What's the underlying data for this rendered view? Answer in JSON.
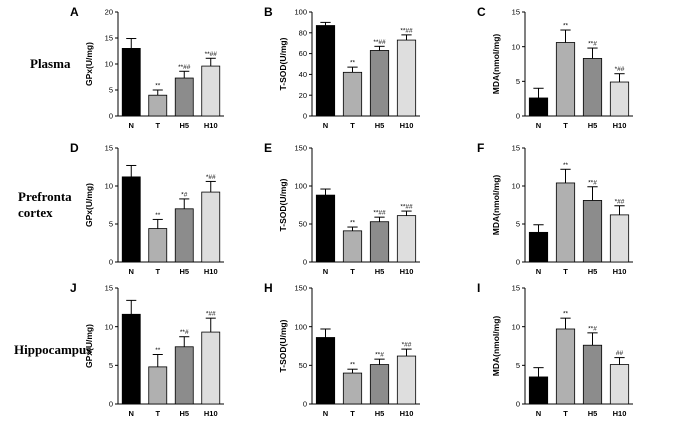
{
  "row_labels": [
    "Plasma",
    "Prefronta\ncortex",
    "Hippocampus"
  ],
  "bar_colors": [
    "#000000",
    "#b0b0b0",
    "#8c8c8c",
    "#dedede"
  ],
  "chart_data": [
    {
      "type": "bar",
      "panel": "A",
      "ylabel": "GPx(U/mg)",
      "ylim": [
        0,
        20
      ],
      "yticks": [
        0,
        5,
        10,
        15,
        20
      ],
      "categories": [
        "N",
        "T",
        "H5",
        "H10"
      ],
      "values": [
        13.0,
        4.0,
        7.3,
        9.6
      ],
      "errors": [
        1.9,
        1.0,
        1.3,
        1.5
      ],
      "annotations": [
        "",
        "**",
        "**##",
        "**##"
      ]
    },
    {
      "type": "bar",
      "panel": "B",
      "ylabel": "T-SOD(U/mg)",
      "ylim": [
        0,
        100
      ],
      "yticks": [
        0,
        20,
        40,
        60,
        80,
        100
      ],
      "categories": [
        "N",
        "T",
        "H5",
        "H10"
      ],
      "values": [
        87,
        42,
        63,
        73
      ],
      "errors": [
        3,
        5,
        4,
        5
      ],
      "annotations": [
        "",
        "**",
        "**##",
        "**##"
      ]
    },
    {
      "type": "bar",
      "panel": "C",
      "ylabel": "MDA(nmol/mg)",
      "ylim": [
        0,
        15
      ],
      "yticks": [
        0,
        5,
        10,
        15
      ],
      "categories": [
        "N",
        "T",
        "H5",
        "H10"
      ],
      "values": [
        2.6,
        10.6,
        8.3,
        4.9
      ],
      "errors": [
        1.4,
        1.8,
        1.5,
        1.2
      ],
      "annotations": [
        "",
        "**",
        "**#",
        "*##"
      ]
    },
    {
      "type": "bar",
      "panel": "D",
      "ylabel": "GPx(U/mg)",
      "ylim": [
        0,
        15
      ],
      "yticks": [
        0,
        5,
        10,
        15
      ],
      "categories": [
        "N",
        "T",
        "H5",
        "H10"
      ],
      "values": [
        11.2,
        4.4,
        7.0,
        9.2
      ],
      "errors": [
        1.5,
        1.2,
        1.3,
        1.4
      ],
      "annotations": [
        "",
        "**",
        "*#",
        "*##"
      ]
    },
    {
      "type": "bar",
      "panel": "E",
      "ylabel": "T-SOD(U/mg)",
      "ylim": [
        0,
        150
      ],
      "yticks": [
        0,
        50,
        100,
        150
      ],
      "categories": [
        "N",
        "T",
        "H5",
        "H10"
      ],
      "values": [
        88,
        41,
        53,
        61
      ],
      "errors": [
        8,
        5,
        6,
        6
      ],
      "annotations": [
        "",
        "**",
        "**##",
        "**##"
      ]
    },
    {
      "type": "bar",
      "panel": "F",
      "ylabel": "MDA(nmol/mg)",
      "ylim": [
        0,
        15
      ],
      "yticks": [
        0,
        5,
        10,
        15
      ],
      "categories": [
        "N",
        "T",
        "H5",
        "H10"
      ],
      "values": [
        3.9,
        10.4,
        8.1,
        6.2
      ],
      "errors": [
        1.0,
        1.8,
        1.8,
        1.2
      ],
      "annotations": [
        "",
        "**",
        "**#",
        "*##"
      ]
    },
    {
      "type": "bar",
      "panel": "J",
      "ylabel": "GPx(U/mg)",
      "ylim": [
        0,
        15
      ],
      "yticks": [
        0,
        5,
        10,
        15
      ],
      "categories": [
        "N",
        "T",
        "H5",
        "H10"
      ],
      "values": [
        11.6,
        4.8,
        7.4,
        9.3
      ],
      "errors": [
        1.8,
        1.6,
        1.3,
        1.8
      ],
      "annotations": [
        "",
        "**",
        "**#",
        "*##"
      ]
    },
    {
      "type": "bar",
      "panel": "H",
      "ylabel": "T-SOD(U/mg)",
      "ylim": [
        0,
        150
      ],
      "yticks": [
        0,
        50,
        100,
        150
      ],
      "categories": [
        "N",
        "T",
        "H5",
        "H10"
      ],
      "values": [
        86,
        40,
        51,
        62
      ],
      "errors": [
        11,
        5,
        7,
        9
      ],
      "annotations": [
        "",
        "**",
        "**#",
        "*##"
      ]
    },
    {
      "type": "bar",
      "panel": "I",
      "ylabel": "MDA(nmol/mg)",
      "ylim": [
        0,
        15
      ],
      "yticks": [
        0,
        5,
        10,
        15
      ],
      "categories": [
        "N",
        "T",
        "H5",
        "H10"
      ],
      "values": [
        3.5,
        9.7,
        7.6,
        5.1
      ],
      "errors": [
        1.2,
        1.4,
        1.6,
        0.9
      ],
      "annotations": [
        "",
        "**",
        "**#",
        "##"
      ]
    }
  ]
}
